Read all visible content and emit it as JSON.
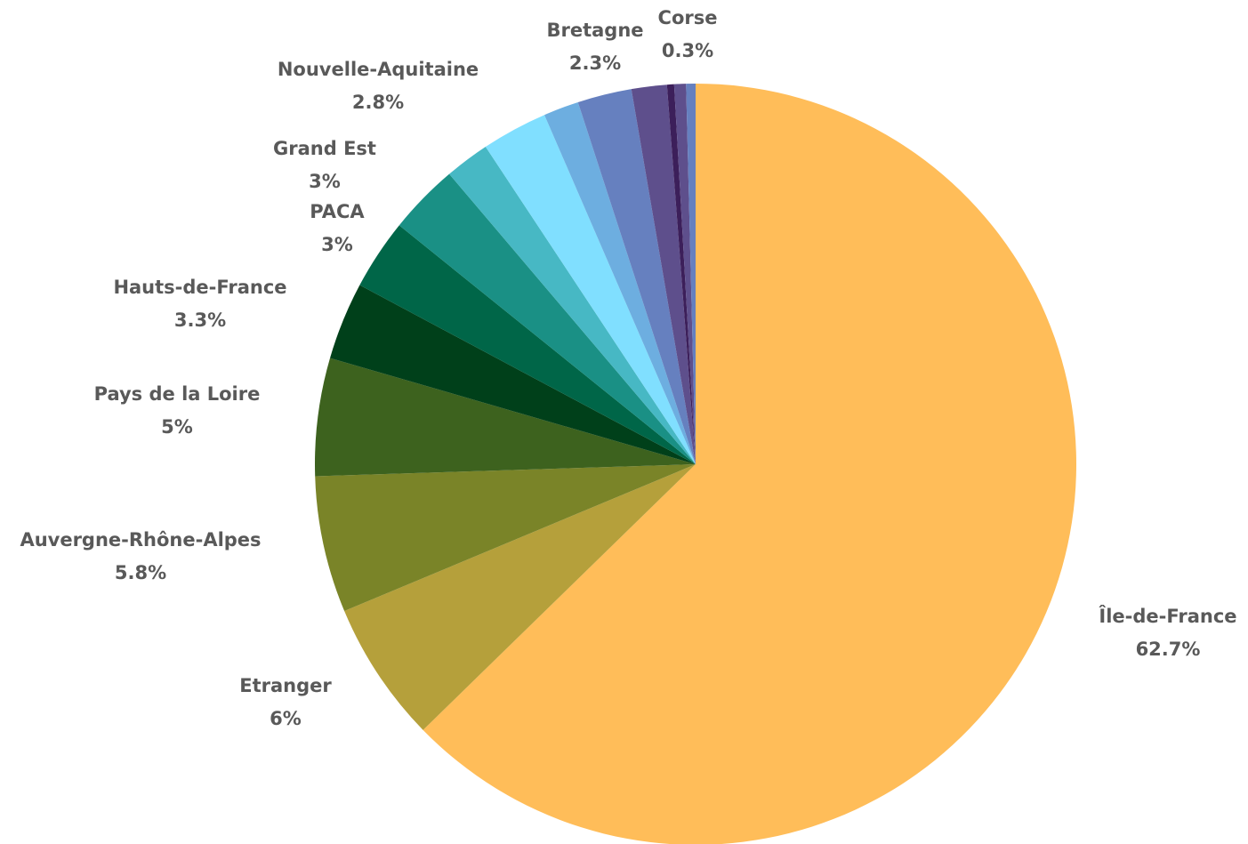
{
  "chart_data": {
    "type": "pie",
    "categories": [
      "Île-de-France",
      "Etranger",
      "Auvergne-Rhône-Alpes",
      "Pays de la Loire",
      "Hauts-de-France",
      "PACA",
      "Grand Est",
      null,
      "Nouvelle-Aquitaine",
      null,
      "Bretagne",
      null,
      "Corse",
      null,
      null
    ],
    "values": [
      62.7,
      6,
      5.8,
      5,
      3.3,
      3,
      3,
      1.9,
      2.8,
      1.5,
      2.3,
      1.5,
      0.3,
      0.5,
      0.4
    ],
    "value_labels": [
      "62.7%",
      "6%",
      "5.8%",
      "5%",
      "3.3%",
      "3%",
      "3%",
      null,
      "2.8%",
      null,
      "2.3%",
      null,
      "0.3%",
      null,
      null
    ],
    "colors": [
      "#ffbd59",
      "#b5a03b",
      "#7a8428",
      "#3d621e",
      "#00401a",
      "#006648",
      "#1a9085",
      "#47b8c4",
      "#80dfff",
      "#6daee0",
      "#6680bf",
      "#5e4f8c",
      "#3c1f5a",
      "#5e4f8c",
      "#6680bf"
    ]
  }
}
